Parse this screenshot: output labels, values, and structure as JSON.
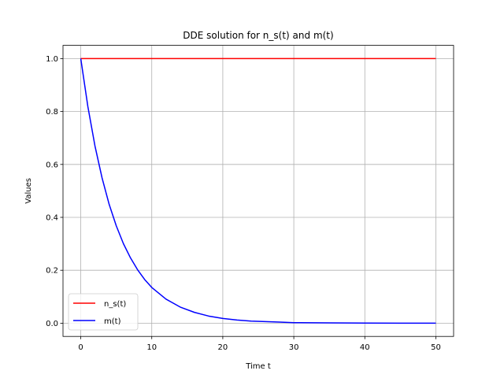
{
  "chart_data": {
    "type": "line",
    "title": "DDE solution for n_s(t) and m(t)",
    "xlabel": "Time t",
    "ylabel": "Values",
    "xlim": [
      -2.5,
      52.5
    ],
    "ylim": [
      -0.05,
      1.05
    ],
    "xticks": [
      0,
      10,
      20,
      30,
      40,
      50
    ],
    "yticks": [
      0.0,
      0.2,
      0.4,
      0.6,
      0.8,
      1.0
    ],
    "xtick_labels": [
      "0",
      "10",
      "20",
      "30",
      "40",
      "50"
    ],
    "ytick_labels": [
      "0.0",
      "0.2",
      "0.4",
      "0.6",
      "0.8",
      "1.0"
    ],
    "grid": true,
    "legend_position": "lower-left",
    "series": [
      {
        "name": "n_s(t)",
        "color": "#ff0000",
        "x": [
          0,
          50
        ],
        "y": [
          1.0,
          1.0
        ]
      },
      {
        "name": "m(t)",
        "color": "#0000ff",
        "x": [
          0,
          1,
          2,
          3,
          4,
          5,
          6,
          7,
          8,
          9,
          10,
          12,
          14,
          16,
          18,
          20,
          22,
          24,
          26,
          28,
          30,
          35,
          40,
          45,
          50
        ],
        "y": [
          1.0,
          0.819,
          0.67,
          0.549,
          0.449,
          0.368,
          0.301,
          0.247,
          0.202,
          0.165,
          0.135,
          0.091,
          0.061,
          0.041,
          0.027,
          0.018,
          0.012,
          0.008,
          0.006,
          0.004,
          0.002,
          0.001,
          0.0003,
          0.0001,
          0.0
        ]
      }
    ]
  }
}
